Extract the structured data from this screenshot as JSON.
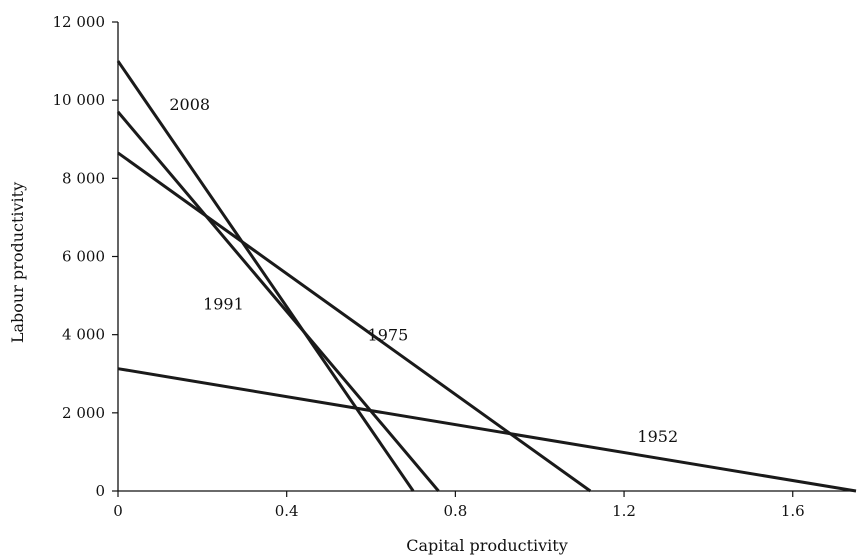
{
  "chart_data": {
    "type": "line",
    "xlabel": "Capital productivity",
    "ylabel": "Labour productivity",
    "xlim": [
      0,
      1.75
    ],
    "ylim": [
      0,
      12000
    ],
    "x_ticks": [
      {
        "value": 0,
        "label": "0"
      },
      {
        "value": 0.4,
        "label": "0.4"
      },
      {
        "value": 0.8,
        "label": "0.8"
      },
      {
        "value": 1.2,
        "label": "1.2"
      },
      {
        "value": 1.6,
        "label": "1.6"
      }
    ],
    "y_ticks": [
      {
        "value": 0,
        "label": "0"
      },
      {
        "value": 2000,
        "label": "2 000"
      },
      {
        "value": 4000,
        "label": "4 000"
      },
      {
        "value": 6000,
        "label": "6 000"
      },
      {
        "value": 8000,
        "label": "8 000"
      },
      {
        "value": 10000,
        "label": "10 000"
      },
      {
        "value": 12000,
        "label": "12 000"
      }
    ],
    "grid": false,
    "legend": "none",
    "series": [
      {
        "name": "2008",
        "x": [
          0,
          0.7
        ],
        "y": [
          11000,
          0
        ]
      },
      {
        "name": "1991",
        "x": [
          0,
          0.76
        ],
        "y": [
          9700,
          0
        ]
      },
      {
        "name": "1975",
        "x": [
          0,
          1.12
        ],
        "y": [
          8650,
          0
        ]
      },
      {
        "name": "1952",
        "x": [
          0,
          1.75
        ],
        "y": [
          3130,
          0
        ]
      }
    ],
    "annotations": [
      {
        "text": "2008",
        "x": 0.17,
        "y": 9750
      },
      {
        "text": "1991",
        "x": 0.25,
        "y": 4650
      },
      {
        "text": "1975",
        "x": 0.64,
        "y": 3850
      },
      {
        "text": "1952",
        "x": 1.28,
        "y": 1250
      }
    ]
  }
}
